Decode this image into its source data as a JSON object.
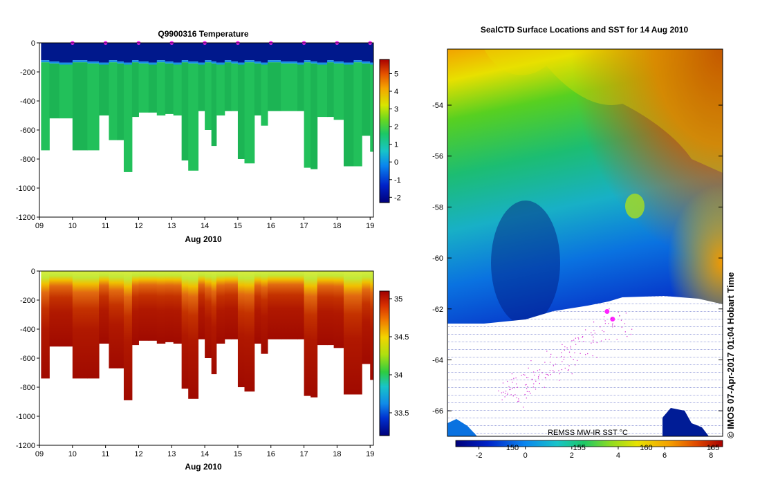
{
  "chart_data": [
    {
      "type": "heatmap",
      "title": "Q9900316  Temperature",
      "xlabel": "Aug 2010",
      "ylabel": "",
      "xlim": [
        9,
        19.1
      ],
      "ylim": [
        -1200,
        0
      ],
      "xticks": [
        "09",
        "10",
        "11",
        "12",
        "13",
        "14",
        "15",
        "16",
        "17",
        "18",
        "19"
      ],
      "yticks": [
        "0",
        "-200",
        "-400",
        "-600",
        "-800",
        "-1000",
        "-1200"
      ],
      "profile_times": [
        9.05,
        9.3,
        9.6,
        10.0,
        10.45,
        10.8,
        11.1,
        11.35,
        11.55,
        11.8,
        12.0,
        12.3,
        12.55,
        12.8,
        13.05,
        13.3,
        13.5,
        13.8,
        14.0,
        14.2,
        14.35,
        14.6,
        14.8,
        15.0,
        15.2,
        15.5,
        15.7,
        15.9,
        16.3,
        16.8,
        17.0,
        17.2,
        17.4,
        17.7,
        17.9,
        18.2,
        18.5,
        18.75,
        19.0
      ],
      "max_depths": [
        740,
        520,
        520,
        740,
        740,
        500,
        670,
        670,
        890,
        510,
        480,
        480,
        500,
        490,
        500,
        810,
        880,
        470,
        600,
        710,
        500,
        470,
        470,
        800,
        830,
        500,
        570,
        470,
        470,
        470,
        860,
        870,
        510,
        510,
        530,
        850,
        850,
        640,
        750
      ],
      "surface_layer_depth": 120,
      "profile_markers": [
        10.0,
        11.0,
        12.0,
        13.0,
        14.0,
        15.0,
        16.0,
        17.0,
        18.0,
        19.0
      ],
      "colorbar": {
        "min": -2.3,
        "max": 5.8,
        "ticks": [
          "-2",
          "-1",
          "0",
          "1",
          "2",
          "3",
          "4",
          "5"
        ]
      }
    },
    {
      "type": "heatmap",
      "title": "",
      "xlabel": "Aug 2010",
      "ylabel": "",
      "xlim": [
        9,
        19.1
      ],
      "ylim": [
        -1200,
        0
      ],
      "xticks": [
        "09",
        "10",
        "11",
        "12",
        "13",
        "14",
        "15",
        "16",
        "17",
        "18",
        "19"
      ],
      "yticks": [
        "0",
        "-200",
        "-400",
        "-600",
        "-800",
        "-1000",
        "-1200"
      ],
      "colorbar": {
        "min": 33.2,
        "max": 35.1,
        "ticks": [
          "33.5",
          "34",
          "34.5",
          "35"
        ]
      }
    },
    {
      "type": "heatmap",
      "title": "SealCTD Surface Locations and SST for 14 Aug 2010",
      "xlabel": "",
      "ylabel": "",
      "ylim": [
        -67,
        -51.8
      ],
      "yticks": [
        "-54",
        "-56",
        "-58",
        "-60",
        "-62",
        "-64",
        "-66"
      ],
      "colorbar_label": "REMSS MW-IR SST °C",
      "colorbar": {
        "min": -3,
        "max": 8.5,
        "ticks": [
          "-2",
          "0",
          "2",
          "4",
          "6",
          "8"
        ]
      },
      "lon_ticks": [
        "150",
        "155",
        "160",
        "165"
      ],
      "ice_edge_lat": -62.5,
      "track_points": [
        [
          0.58,
          -62.1
        ],
        [
          0.6,
          -62.4
        ]
      ],
      "side_label": "© IMOS 07-Apr-2017 01:04 Hobart Time"
    }
  ]
}
